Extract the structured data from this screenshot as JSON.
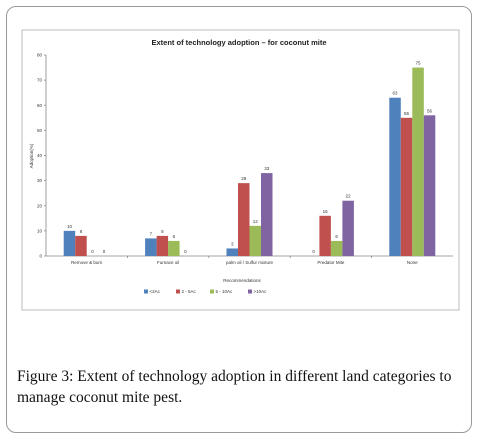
{
  "chart_data": {
    "type": "bar",
    "title": "Extent of technology adoption – for coconut mite",
    "xlabel": "Recommendations",
    "ylabel": "Adoption(%)",
    "ylim": [
      0,
      80
    ],
    "yticks": [
      0,
      10,
      20,
      30,
      40,
      50,
      60,
      70,
      80
    ],
    "grid": false,
    "legend_position": "bottom",
    "categories": [
      "Remove & burn",
      "Furnace oil",
      "palm oil / Sulfur mixture",
      "Predator Mite",
      "None"
    ],
    "series": [
      {
        "name": "<2Ac",
        "color": "#4f81bd",
        "values": [
          10,
          7,
          3,
          0,
          63
        ]
      },
      {
        "name": "2 - 5Ac",
        "color": "#c0504d",
        "values": [
          8,
          8,
          29,
          16,
          55
        ]
      },
      {
        "name": "5 - 10Ac",
        "color": "#9bbb59",
        "values": [
          0,
          6,
          12,
          6,
          75
        ]
      },
      {
        "name": ">10Ac",
        "color": "#8064a2",
        "values": [
          0,
          0,
          33,
          22,
          56
        ]
      }
    ]
  },
  "caption": {
    "label": "Figure 3:",
    "text": "Extent of technology adoption in different land categories to manage coconut mite pest."
  }
}
